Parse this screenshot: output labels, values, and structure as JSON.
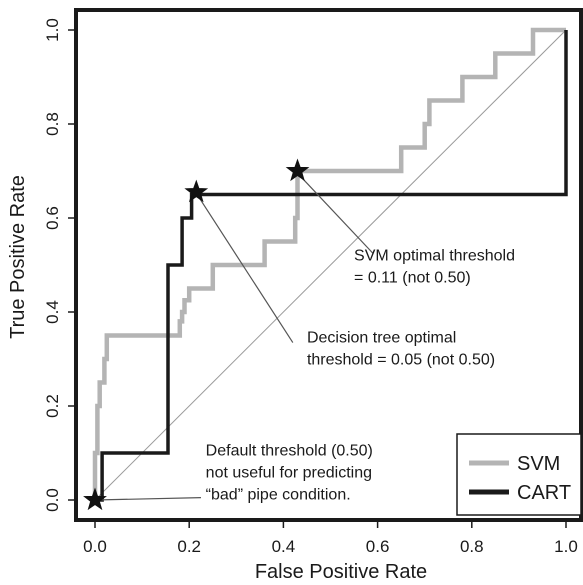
{
  "chart_data": {
    "type": "line",
    "title": "",
    "xlabel": "False Positive Rate",
    "ylabel": "True Positive Rate",
    "xlim": [
      0,
      1
    ],
    "ylim": [
      0,
      1
    ],
    "xticks": [
      "0.0",
      "0.2",
      "0.4",
      "0.6",
      "0.8",
      "1.0"
    ],
    "yticks": [
      "0.0",
      "0.2",
      "0.4",
      "0.6",
      "0.8",
      "1.0"
    ],
    "grid": false,
    "legend_position": "bottom-right",
    "diagonal_reference": true,
    "series": [
      {
        "name": "SVM",
        "color": "#b4b4b4",
        "x": [
          0,
          0,
          0.005,
          0.005,
          0.01,
          0.01,
          0.02,
          0.02,
          0.025,
          0.025,
          0.03,
          0.03,
          0.18,
          0.18,
          0.185,
          0.185,
          0.19,
          0.19,
          0.2,
          0.2,
          0.25,
          0.25,
          0.36,
          0.36,
          0.425,
          0.425,
          0.43,
          0.43,
          0.65,
          0.65,
          0.7,
          0.7,
          0.71,
          0.71,
          0.78,
          0.78,
          0.85,
          0.85,
          0.93,
          0.93,
          1.0,
          1.0
        ],
        "y": [
          0,
          0.1,
          0.1,
          0.2,
          0.2,
          0.25,
          0.25,
          0.3,
          0.3,
          0.35,
          0.35,
          0.35,
          0.35,
          0.38,
          0.38,
          0.4,
          0.4,
          0.425,
          0.425,
          0.45,
          0.45,
          0.5,
          0.5,
          0.55,
          0.55,
          0.6,
          0.6,
          0.7,
          0.7,
          0.75,
          0.75,
          0.8,
          0.8,
          0.85,
          0.85,
          0.9,
          0.9,
          0.95,
          0.95,
          1.0,
          1.0,
          1.0
        ]
      },
      {
        "name": "CART",
        "color": "#1a1a1a",
        "x": [
          0,
          0.015,
          0.015,
          0.155,
          0.155,
          0.185,
          0.185,
          0.205,
          0.205,
          0.215,
          0.215,
          1.0,
          1.0
        ],
        "y": [
          0,
          0,
          0.1,
          0.1,
          0.5,
          0.5,
          0.6,
          0.6,
          0.65,
          0.65,
          0.65,
          0.65,
          1.0
        ]
      }
    ],
    "markers": [
      {
        "x": 0.0,
        "y": 0.0
      },
      {
        "x": 0.215,
        "y": 0.655
      },
      {
        "x": 0.43,
        "y": 0.7
      }
    ],
    "annotations": [
      {
        "lines": [
          "SVM optimal threshold",
          "= 0.11 (not 0.50)"
        ],
        "x": 0.55,
        "y": 0.51,
        "point": [
          0.435,
          0.69
        ],
        "anchor": [
          0.59,
          0.525
        ]
      },
      {
        "lines": [
          "Decision tree optimal",
          "threshold = 0.05 (not 0.50)"
        ],
        "x": 0.45,
        "y": 0.335,
        "point": [
          0.22,
          0.645
        ],
        "anchor": [
          0.42,
          0.335
        ]
      },
      {
        "lines": [
          "Default threshold (0.50)",
          "not useful for predicting",
          "“bad” pipe condition."
        ],
        "x": 0.235,
        "y": 0.095,
        "point": [
          0.0,
          0.0
        ],
        "anchor": [
          0.225,
          0.005
        ]
      }
    ]
  }
}
